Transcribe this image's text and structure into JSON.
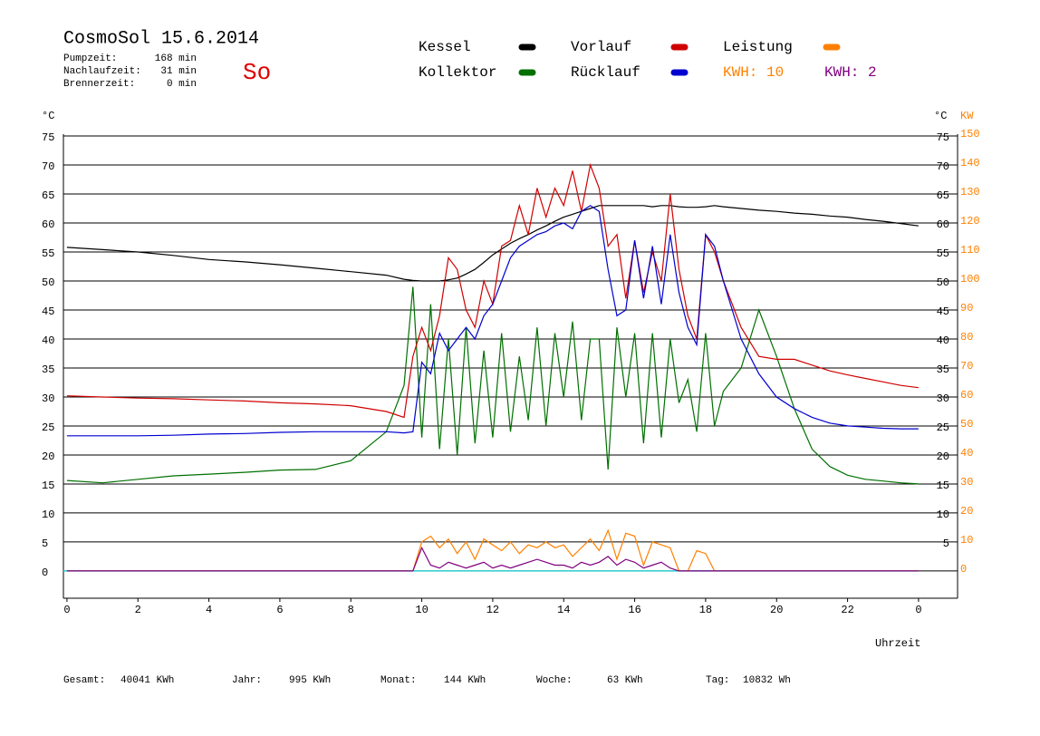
{
  "chart_data": {
    "type": "line",
    "title": "CosmoSol 15.6.2014",
    "weekday": "So",
    "info": [
      [
        "Pumpzeit:",
        "168 min"
      ],
      [
        "Nachlaufzeit:",
        "31 min"
      ],
      [
        "Brennerzeit:",
        "0 min"
      ]
    ],
    "y_unit": "°C",
    "y2_unit": "KW",
    "x_label": "Uhrzeit",
    "kwh_total": {
      "text": "KWH: 10",
      "color": "#ff8000"
    },
    "footer": [
      [
        "Gesamt:",
        "40041 KWh"
      ],
      [
        "Jahr:",
        "995 KWh"
      ],
      [
        "Monat:",
        "144 KWh"
      ],
      [
        "Woche:",
        "63 KWh"
      ],
      [
        "Tag:",
        "10832 Wh"
      ]
    ],
    "xlim": [
      -0.1,
      25.1
    ],
    "xticks": [
      0,
      2,
      4,
      6,
      8,
      10,
      12,
      14,
      16,
      18,
      20,
      22,
      {
        "value": 24,
        "label": "0"
      }
    ],
    "ylim": [
      -4.7,
      75
    ],
    "yticks": [
      0,
      5,
      10,
      15,
      20,
      25,
      30,
      35,
      40,
      45,
      50,
      55,
      60,
      65,
      70,
      75
    ],
    "y2lim": [
      -9.4,
      150
    ],
    "y2ticks": [
      0,
      10,
      20,
      30,
      40,
      50,
      60,
      70,
      80,
      90,
      100,
      110,
      120,
      130,
      140,
      150
    ],
    "grid": true,
    "x": [
      0,
      1,
      2,
      3,
      4,
      5,
      6,
      7,
      8,
      9,
      9.5,
      9.75,
      10,
      10.25,
      10.5,
      10.75,
      11,
      11.25,
      11.5,
      11.75,
      12,
      12.25,
      12.5,
      12.75,
      13,
      13.25,
      13.5,
      13.75,
      14,
      14.25,
      14.5,
      14.75,
      15,
      15.25,
      15.5,
      15.75,
      16,
      16.25,
      16.5,
      16.75,
      17,
      17.25,
      17.5,
      17.75,
      18,
      18.25,
      18.5,
      19,
      19.5,
      20,
      20.5,
      21,
      21.5,
      22,
      22.5,
      23,
      23.5,
      24
    ],
    "series": [
      {
        "name": "Kessel",
        "color": "#000000",
        "values": [
          55.8,
          55.4,
          55,
          54.4,
          53.7,
          53.3,
          52.8,
          52.2,
          51.6,
          51,
          50.3,
          50.1,
          50,
          50,
          50,
          50.2,
          50.5,
          51.2,
          52,
          53.2,
          54.5,
          55.5,
          56.5,
          57.3,
          58,
          58.8,
          59.5,
          60.3,
          61,
          61.5,
          62,
          62.5,
          63,
          63,
          63,
          63,
          63,
          63,
          62.8,
          63,
          63,
          62.8,
          62.7,
          62.7,
          62.8,
          63,
          62.8,
          62.5,
          62.2,
          62,
          61.7,
          61.5,
          61.2,
          61,
          60.6,
          60.3,
          59.9,
          59.5
        ]
      },
      {
        "name": "Kollektor",
        "color": "#007000",
        "values": [
          15.6,
          15.2,
          15.8,
          16.4,
          16.7,
          17,
          17.4,
          17.5,
          19,
          24,
          32,
          49,
          23,
          46,
          21,
          40,
          20,
          42,
          22,
          38,
          23,
          41,
          24,
          37,
          26,
          42,
          25,
          41,
          30,
          43,
          26,
          40,
          40,
          17.5,
          42,
          30,
          41,
          22,
          41,
          23,
          40,
          29,
          33,
          24,
          41,
          25,
          31,
          35,
          45,
          37,
          28,
          21,
          18,
          16.5,
          15.8,
          15.5,
          15.2,
          15
        ]
      },
      {
        "name": "Vorlauf",
        "color": "#d00000",
        "values": [
          30.2,
          30,
          29.8,
          29.7,
          29.5,
          29.3,
          29,
          28.8,
          28.5,
          27.5,
          26.5,
          37,
          42,
          38,
          44,
          54,
          52,
          45,
          42,
          50,
          46,
          56,
          57,
          63,
          58,
          66,
          61,
          66,
          63,
          69,
          62,
          70,
          66,
          56,
          58,
          47,
          57,
          48,
          55,
          50,
          65,
          52,
          44,
          40,
          58,
          55,
          50,
          42,
          37,
          36.5,
          36.5,
          35.5,
          34.5,
          33.8,
          33.2,
          32.6,
          32,
          31.6
        ]
      },
      {
        "name": "Rücklauf",
        "color": "#0000d0",
        "values": [
          23.3,
          23.3,
          23.3,
          23.4,
          23.6,
          23.7,
          23.9,
          24,
          24,
          24,
          23.8,
          24,
          36,
          34,
          41,
          38,
          40,
          42,
          40,
          44,
          46,
          50,
          54,
          56,
          57,
          58,
          58.5,
          59.5,
          60,
          59,
          62,
          63,
          62,
          52,
          44,
          45,
          57,
          47,
          56,
          46,
          58,
          48,
          42,
          39,
          58,
          56,
          50,
          40,
          34,
          30,
          28,
          26.5,
          25.5,
          25,
          24.8,
          24.6,
          24.5,
          24.5
        ]
      },
      {
        "name": "Leistung",
        "color": "#ff8000",
        "axis": "y2",
        "values": [
          0,
          0,
          0,
          0,
          0,
          0,
          0,
          0,
          0,
          0,
          0,
          0,
          10,
          12,
          8,
          11,
          6,
          10,
          4,
          11,
          9,
          7,
          10,
          6,
          9,
          8,
          10,
          8,
          9,
          5,
          8,
          11,
          7,
          14,
          4,
          13,
          12,
          2,
          10,
          9,
          8,
          0,
          0,
          7,
          6,
          0,
          0,
          0,
          0,
          0,
          0,
          0,
          0,
          0,
          0,
          0,
          0,
          0
        ]
      },
      {
        "name": "KWH: 2",
        "color": "#800080",
        "axis": "y2",
        "values": [
          0,
          0,
          0,
          0,
          0,
          0,
          0,
          0,
          0,
          0,
          0,
          0,
          8,
          2,
          1,
          3,
          2,
          1,
          2,
          3,
          1,
          2,
          1,
          2,
          3,
          4,
          3,
          2,
          2,
          1,
          3,
          2,
          3,
          5,
          2,
          4,
          3,
          1,
          2,
          3,
          1,
          0,
          0,
          0,
          0,
          0,
          0,
          0,
          0,
          0,
          0,
          0,
          0,
          0,
          0,
          0,
          0,
          0
        ]
      }
    ]
  }
}
